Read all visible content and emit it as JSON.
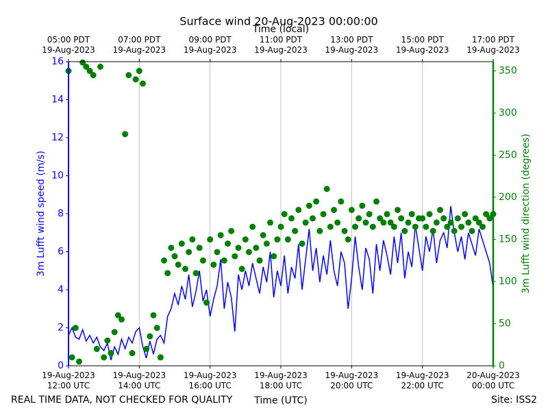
{
  "chart_data": {
    "type": "line-scatter",
    "title": "Surface wind 20-Aug-2023 00:00:00",
    "xlabel": "Time (UTC)",
    "x2label": "Time (local)",
    "ylabel": "3m Lufft wind speed (m/s)",
    "y2label": "3m Lufft wind direction (degrees)",
    "footer_left": "REAL TIME DATA, NOT CHECKED FOR QUALITY",
    "footer_right": "Site: ISS2",
    "xlim": [
      12,
      24
    ],
    "xticks": [
      {
        "value": 12,
        "label": "19-Aug-2023\n12:00 UTC"
      },
      {
        "value": 14,
        "label": "19-Aug-2023\n14:00 UTC"
      },
      {
        "value": 16,
        "label": "19-Aug-2023\n16:00 UTC"
      },
      {
        "value": 18,
        "label": "19-Aug-2023\n18:00 UTC"
      },
      {
        "value": 20,
        "label": "19-Aug-2023\n20:00 UTC"
      },
      {
        "value": 22,
        "label": "19-Aug-2023\n22:00 UTC"
      },
      {
        "value": 24,
        "label": "20-Aug-2023\n00:00 UTC"
      }
    ],
    "x2ticks": [
      {
        "value": 12,
        "label": "05:00 PDT\n19-Aug-2023"
      },
      {
        "value": 14,
        "label": "07:00 PDT\n19-Aug-2023"
      },
      {
        "value": 16,
        "label": "09:00 PDT\n19-Aug-2023"
      },
      {
        "value": 18,
        "label": "11:00 PDT\n19-Aug-2023"
      },
      {
        "value": 20,
        "label": "13:00 PDT\n19-Aug-2023"
      },
      {
        "value": 22,
        "label": "15:00 PDT\n19-Aug-2023"
      },
      {
        "value": 24,
        "label": "17:00 PDT\n19-Aug-2023"
      }
    ],
    "ylim": [
      0,
      16
    ],
    "yticks": [
      0,
      2,
      4,
      6,
      8,
      10,
      12,
      14,
      16
    ],
    "y2lim": [
      0,
      361
    ],
    "y2ticks": [
      0,
      50,
      100,
      150,
      200,
      250,
      300,
      350
    ],
    "grid": "x",
    "x": [
      12.0,
      12.1,
      12.2,
      12.3,
      12.4,
      12.5,
      12.6,
      12.7,
      12.8,
      12.9,
      13.0,
      13.1,
      13.2,
      13.3,
      13.4,
      13.5,
      13.6,
      13.7,
      13.8,
      13.9,
      14.0,
      14.1,
      14.2,
      14.3,
      14.4,
      14.5,
      14.6,
      14.7,
      14.8,
      14.9,
      15.0,
      15.1,
      15.2,
      15.3,
      15.4,
      15.5,
      15.6,
      15.7,
      15.8,
      15.9,
      16.0,
      16.1,
      16.2,
      16.3,
      16.4,
      16.5,
      16.6,
      16.7,
      16.8,
      16.9,
      17.0,
      17.1,
      17.2,
      17.3,
      17.4,
      17.5,
      17.6,
      17.7,
      17.8,
      17.9,
      18.0,
      18.1,
      18.2,
      18.3,
      18.4,
      18.5,
      18.6,
      18.7,
      18.8,
      18.9,
      19.0,
      19.1,
      19.2,
      19.3,
      19.4,
      19.5,
      19.6,
      19.7,
      19.8,
      19.9,
      20.0,
      20.1,
      20.2,
      20.3,
      20.4,
      20.5,
      20.6,
      20.7,
      20.8,
      20.9,
      21.0,
      21.1,
      21.2,
      21.3,
      21.4,
      21.5,
      21.6,
      21.7,
      21.8,
      21.9,
      22.0,
      22.1,
      22.2,
      22.3,
      22.4,
      22.5,
      22.6,
      22.7,
      22.8,
      22.9,
      23.0,
      23.1,
      23.2,
      23.3,
      23.4,
      23.5,
      23.6,
      23.7,
      23.8,
      23.9,
      24.0
    ],
    "series": [
      {
        "style": "line",
        "color": "#0000ff",
        "axis": "y",
        "values": [
          1.6,
          2.0,
          1.5,
          1.4,
          1.9,
          1.3,
          1.6,
          1.2,
          1.5,
          1.0,
          0.8,
          1.2,
          0.3,
          1.0,
          0.6,
          1.4,
          0.9,
          1.5,
          1.2,
          1.8,
          2.0,
          1.0,
          0.4,
          1.3,
          0.6,
          1.4,
          1.6,
          1.2,
          2.6,
          3.0,
          3.8,
          3.2,
          4.2,
          3.5,
          4.8,
          3.1,
          3.9,
          5.0,
          3.4,
          4.0,
          2.6,
          3.5,
          4.2,
          5.6,
          3.0,
          4.4,
          3.6,
          1.8,
          4.8,
          4.0,
          5.0,
          4.2,
          5.4,
          4.6,
          3.8,
          5.2,
          4.4,
          6.0,
          3.6,
          5.0,
          4.2,
          5.8,
          3.8,
          5.2,
          4.6,
          6.4,
          4.0,
          5.6,
          7.2,
          5.0,
          6.2,
          4.4,
          5.8,
          4.8,
          6.6,
          5.0,
          4.2,
          6.0,
          5.4,
          3.0,
          4.6,
          6.8,
          5.2,
          4.0,
          6.2,
          5.6,
          3.8,
          6.4,
          5.0,
          6.6,
          5.8,
          4.8,
          6.8,
          5.4,
          7.0,
          4.6,
          6.0,
          5.2,
          7.4,
          6.2,
          5.0,
          6.8,
          6.0,
          7.2,
          5.4,
          6.6,
          7.0,
          6.2,
          8.4,
          7.0,
          6.0,
          6.8,
          5.6,
          7.0,
          6.4,
          5.8,
          7.2,
          6.6,
          6.0,
          5.4,
          4.1
        ]
      },
      {
        "style": "scatter",
        "color": "#008000",
        "axis": "y2",
        "values": [
          350,
          10,
          45,
          5,
          360,
          355,
          350,
          345,
          20,
          355,
          10,
          30,
          15,
          40,
          60,
          55,
          275,
          345,
          15,
          340,
          350,
          335,
          20,
          35,
          60,
          45,
          10,
          125,
          110,
          140,
          130,
          120,
          145,
          115,
          135,
          150,
          110,
          140,
          125,
          75,
          150,
          120,
          135,
          155,
          125,
          145,
          160,
          130,
          140,
          115,
          150,
          135,
          165,
          140,
          125,
          155,
          145,
          170,
          130,
          150,
          165,
          180,
          150,
          175,
          160,
          185,
          145,
          170,
          190,
          175,
          195,
          160,
          180,
          210,
          165,
          185,
          170,
          195,
          160,
          150,
          185,
          165,
          175,
          190,
          170,
          180,
          165,
          195,
          175,
          170,
          180,
          170,
          165,
          185,
          175,
          160,
          170,
          180,
          165,
          175,
          175,
          165,
          180,
          160,
          170,
          185,
          175,
          165,
          170,
          160,
          175,
          165,
          180,
          170,
          160,
          175,
          170,
          165,
          180,
          175,
          180
        ]
      }
    ]
  }
}
